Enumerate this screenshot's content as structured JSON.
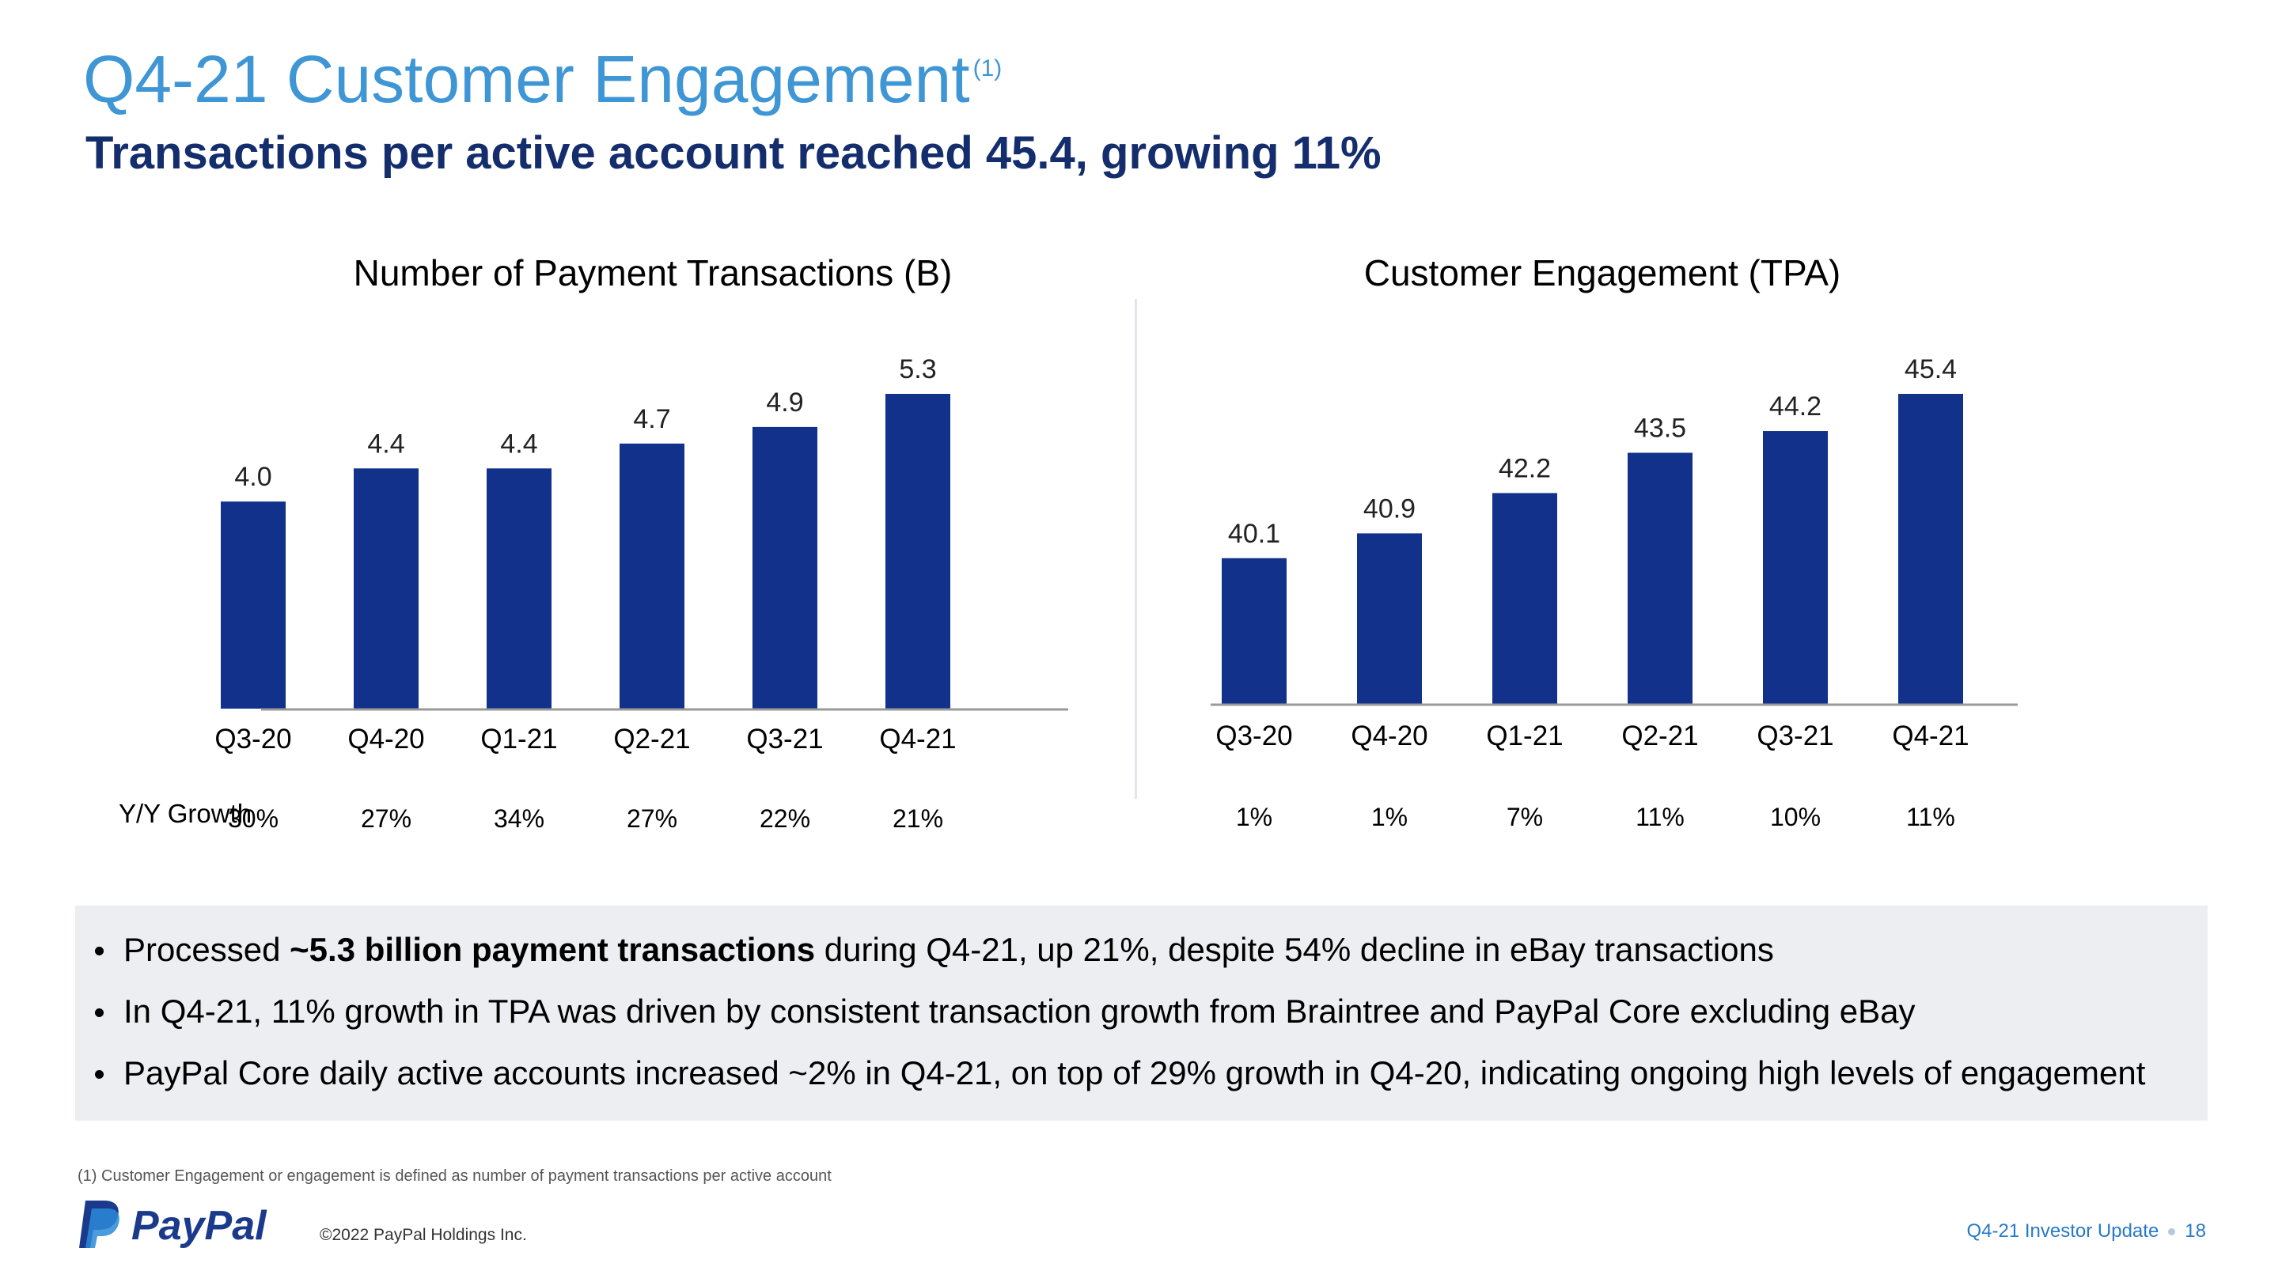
{
  "header": {
    "title": "Q4-21 Customer Engagement",
    "title_sup": "(1)",
    "subtitle": "Transactions per active account reached 45.4, growing 11%"
  },
  "chart_data": [
    {
      "type": "bar",
      "title": "Number of Payment Transactions (B)",
      "categories": [
        "Q3-20",
        "Q4-20",
        "Q1-21",
        "Q2-21",
        "Q3-21",
        "Q4-21"
      ],
      "values": [
        4.0,
        4.4,
        4.4,
        4.7,
        4.9,
        5.3
      ],
      "value_labels": [
        "4.0",
        "4.4",
        "4.4",
        "4.7",
        "4.9",
        "5.3"
      ],
      "growth": [
        "30%",
        "27%",
        "34%",
        "27%",
        "22%",
        "21%"
      ],
      "ylim": [
        1.5,
        5.3
      ],
      "color": "#11318a"
    },
    {
      "type": "bar",
      "title": "Customer Engagement (TPA)",
      "categories": [
        "Q3-20",
        "Q4-20",
        "Q1-21",
        "Q2-21",
        "Q3-21",
        "Q4-21"
      ],
      "values": [
        40.1,
        40.9,
        42.2,
        43.5,
        44.2,
        45.4
      ],
      "value_labels": [
        "40.1",
        "40.9",
        "42.2",
        "43.5",
        "44.2",
        "45.4"
      ],
      "growth": [
        "1%",
        "1%",
        "7%",
        "11%",
        "10%",
        "11%"
      ],
      "ylim": [
        35.4,
        45.4
      ],
      "color": "#11318a"
    }
  ],
  "growth_row_label": "Y/Y Growth",
  "callout": {
    "bullets": [
      {
        "pre": "Processed ",
        "bold": "~5.3 billion payment transactions",
        "post": " during Q4-21, up 21%, despite 54% decline in eBay transactions"
      },
      {
        "pre": "In Q4-21, 11% growth in TPA was driven by consistent transaction growth from Braintree and PayPal Core excluding eBay",
        "bold": "",
        "post": ""
      },
      {
        "pre": "PayPal Core daily active accounts increased ~2% in Q4-21, on top of 29% growth in Q4-20, indicating ongoing high levels of engagement",
        "bold": "",
        "post": ""
      }
    ]
  },
  "footnote": "(1) Customer Engagement or engagement is defined as number of payment transactions per active account",
  "footer": {
    "logo_text": "PayPal",
    "copyright": "©2022 PayPal Holdings Inc.",
    "report": "Q4-21 Investor Update",
    "page_number": "18"
  },
  "colors": {
    "title": "#3f96d5",
    "subtitle": "#142d6d",
    "bar": "#11318a",
    "callout_bg": "#eceef2",
    "footer_link": "#2879c8"
  }
}
